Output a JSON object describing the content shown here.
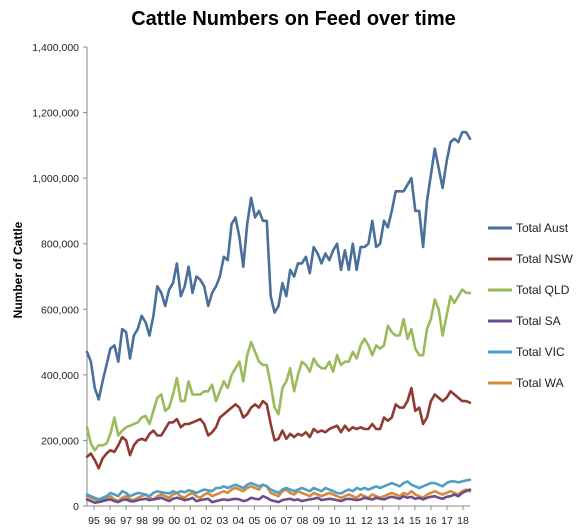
{
  "chart_data": {
    "type": "line",
    "title": "Cattle Numbers on Feed over time",
    "xlabel": "",
    "ylabel": "Number of Cattle",
    "ylim": [
      0,
      1400000
    ],
    "yticks": [
      0,
      200000,
      400000,
      600000,
      800000,
      1000000,
      1200000,
      1400000
    ],
    "ytick_labels": [
      "0",
      "200,000",
      "400,000",
      "600,000",
      "800,000",
      "1,000,000",
      "1,200,000",
      "1,400,000"
    ],
    "xlim": [
      0,
      96
    ],
    "xticks": [
      "95",
      "96",
      "97",
      "98",
      "99",
      "00",
      "01",
      "02",
      "03",
      "04",
      "05",
      "06",
      "07",
      "08",
      "09",
      "10",
      "11",
      "12",
      "13",
      "14",
      "15",
      "16",
      "17",
      "18"
    ],
    "grid": "none",
    "legend_position": "right",
    "colors": {
      "Total Aust": "#4a6f9b",
      "Total NSW": "#8e3b32",
      "Total QLD": "#9bba5a",
      "Total SA": "#6a4e8c",
      "Total VIC": "#4f9ec4",
      "Total WA": "#d68a3c"
    },
    "series": [
      {
        "name": "Total Aust",
        "values": [
          470000,
          440000,
          360000,
          325000,
          380000,
          430000,
          480000,
          490000,
          440000,
          540000,
          530000,
          450000,
          520000,
          540000,
          580000,
          560000,
          520000,
          580000,
          670000,
          650000,
          610000,
          660000,
          680000,
          740000,
          640000,
          670000,
          730000,
          650000,
          700000,
          690000,
          670000,
          610000,
          650000,
          670000,
          700000,
          760000,
          750000,
          860000,
          880000,
          820000,
          730000,
          860000,
          940000,
          880000,
          900000,
          870000,
          870000,
          640000,
          590000,
          610000,
          680000,
          640000,
          720000,
          700000,
          740000,
          740000,
          760000,
          710000,
          790000,
          770000,
          740000,
          770000,
          750000,
          780000,
          800000,
          720000,
          780000,
          720000,
          800000,
          720000,
          790000,
          790000,
          800000,
          870000,
          790000,
          800000,
          870000,
          850000,
          900000,
          960000,
          960000,
          960000,
          980000,
          1000000,
          900000,
          900000,
          790000,
          930000,
          1010000,
          1090000,
          1030000,
          970000,
          1050000,
          1110000,
          1120000,
          1110000,
          1140000,
          1140000,
          1120000
        ]
      },
      {
        "name": "Total NSW",
        "values": [
          150000,
          160000,
          140000,
          115000,
          145000,
          160000,
          170000,
          165000,
          185000,
          210000,
          200000,
          155000,
          185000,
          200000,
          205000,
          200000,
          220000,
          230000,
          215000,
          215000,
          235000,
          255000,
          255000,
          265000,
          240000,
          250000,
          250000,
          255000,
          260000,
          265000,
          250000,
          215000,
          225000,
          240000,
          270000,
          280000,
          290000,
          300000,
          310000,
          300000,
          270000,
          280000,
          300000,
          310000,
          300000,
          320000,
          310000,
          250000,
          200000,
          205000,
          230000,
          205000,
          220000,
          210000,
          220000,
          215000,
          225000,
          210000,
          235000,
          225000,
          230000,
          225000,
          235000,
          240000,
          245000,
          225000,
          245000,
          230000,
          240000,
          235000,
          240000,
          235000,
          235000,
          250000,
          235000,
          235000,
          270000,
          260000,
          270000,
          310000,
          300000,
          300000,
          320000,
          360000,
          290000,
          300000,
          250000,
          270000,
          320000,
          340000,
          330000,
          320000,
          330000,
          350000,
          340000,
          330000,
          320000,
          320000,
          315000
        ]
      },
      {
        "name": "Total QLD",
        "values": [
          240000,
          190000,
          170000,
          185000,
          185000,
          190000,
          220000,
          270000,
          215000,
          230000,
          240000,
          245000,
          250000,
          255000,
          270000,
          275000,
          250000,
          290000,
          330000,
          340000,
          290000,
          300000,
          340000,
          390000,
          320000,
          320000,
          380000,
          340000,
          340000,
          340000,
          350000,
          350000,
          370000,
          320000,
          350000,
          380000,
          360000,
          400000,
          420000,
          440000,
          380000,
          460000,
          500000,
          470000,
          440000,
          430000,
          430000,
          370000,
          300000,
          280000,
          360000,
          380000,
          420000,
          350000,
          400000,
          440000,
          430000,
          410000,
          450000,
          430000,
          420000,
          420000,
          440000,
          410000,
          460000,
          430000,
          440000,
          440000,
          470000,
          450000,
          490000,
          510000,
          490000,
          460000,
          490000,
          480000,
          490000,
          550000,
          530000,
          520000,
          520000,
          570000,
          510000,
          540000,
          480000,
          460000,
          460000,
          540000,
          570000,
          630000,
          600000,
          520000,
          580000,
          640000,
          620000,
          640000,
          660000,
          650000,
          650000
        ]
      },
      {
        "name": "Total SA",
        "values": [
          20000,
          15000,
          10000,
          12000,
          15000,
          18000,
          20000,
          15000,
          12000,
          18000,
          20000,
          15000,
          14000,
          18000,
          20000,
          22000,
          18000,
          20000,
          22000,
          25000,
          20000,
          15000,
          22000,
          25000,
          22000,
          18000,
          20000,
          25000,
          15000,
          18000,
          20000,
          22000,
          12000,
          15000,
          18000,
          20000,
          18000,
          20000,
          22000,
          20000,
          15000,
          18000,
          25000,
          22000,
          20000,
          30000,
          25000,
          18000,
          15000,
          12000,
          18000,
          20000,
          22000,
          18000,
          20000,
          15000,
          18000,
          20000,
          22000,
          25000,
          18000,
          20000,
          22000,
          20000,
          18000,
          15000,
          20000,
          22000,
          20000,
          18000,
          20000,
          25000,
          22000,
          20000,
          25000,
          22000,
          20000,
          25000,
          28000,
          25000,
          22000,
          30000,
          25000,
          28000,
          22000,
          25000,
          20000,
          25000,
          28000,
          30000,
          25000,
          22000,
          28000,
          30000,
          35000,
          30000,
          40000,
          45000,
          50000
        ]
      },
      {
        "name": "Total VIC",
        "values": [
          35000,
          30000,
          25000,
          20000,
          25000,
          30000,
          40000,
          35000,
          30000,
          45000,
          40000,
          30000,
          35000,
          40000,
          38000,
          35000,
          30000,
          40000,
          45000,
          42000,
          40000,
          38000,
          45000,
          40000,
          45000,
          42000,
          48000,
          45000,
          40000,
          45000,
          50000,
          48000,
          45000,
          55000,
          55000,
          60000,
          55000,
          60000,
          65000,
          60000,
          55000,
          65000,
          70000,
          65000,
          60000,
          65000,
          60000,
          50000,
          45000,
          40000,
          50000,
          55000,
          50000,
          45000,
          50000,
          55000,
          50000,
          45000,
          55000,
          50000,
          45000,
          55000,
          50000,
          45000,
          40000,
          38000,
          45000,
          50000,
          45000,
          55000,
          50000,
          55000,
          50000,
          55000,
          60000,
          55000,
          60000,
          65000,
          70000,
          65000,
          60000,
          70000,
          75000,
          65000,
          60000,
          55000,
          60000,
          65000,
          70000,
          70000,
          65000,
          60000,
          70000,
          75000,
          75000,
          72000,
          75000,
          78000,
          80000
        ]
      },
      {
        "name": "Total WA",
        "values": [
          30000,
          25000,
          20000,
          15000,
          20000,
          25000,
          30000,
          20000,
          15000,
          25000,
          30000,
          20000,
          18000,
          25000,
          30000,
          35000,
          25000,
          20000,
          30000,
          35000,
          30000,
          25000,
          35000,
          40000,
          30000,
          25000,
          35000,
          40000,
          30000,
          25000,
          35000,
          40000,
          30000,
          35000,
          40000,
          45000,
          40000,
          50000,
          55000,
          50000,
          45000,
          55000,
          60000,
          55000,
          50000,
          65000,
          60000,
          40000,
          35000,
          30000,
          45000,
          50000,
          40000,
          35000,
          45000,
          40000,
          35000,
          30000,
          40000,
          35000,
          30000,
          35000,
          40000,
          35000,
          30000,
          25000,
          30000,
          35000,
          30000,
          25000,
          35000,
          30000,
          25000,
          35000,
          30000,
          25000,
          30000,
          35000,
          40000,
          35000,
          30000,
          40000,
          35000,
          45000,
          35000,
          30000,
          25000,
          35000,
          40000,
          45000,
          40000,
          35000,
          40000,
          45000,
          40000,
          35000,
          45000,
          50000,
          45000
        ]
      }
    ]
  }
}
